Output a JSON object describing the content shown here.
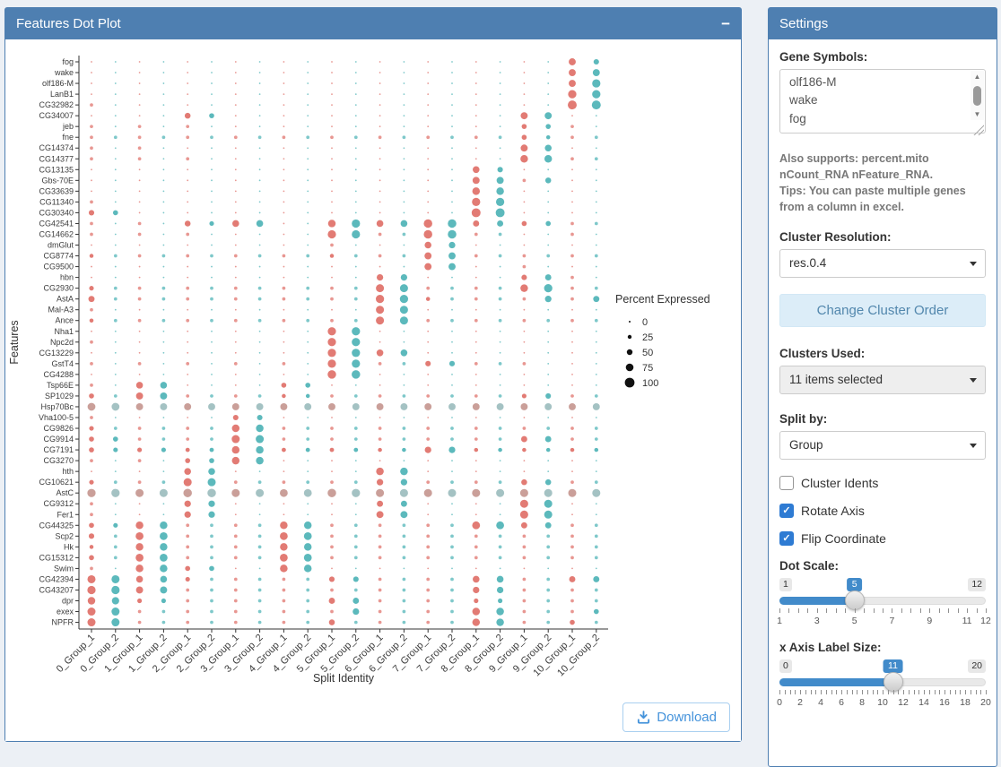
{
  "theme": {
    "header_bg": "#4e7fb1",
    "header_text": "#ffffff",
    "page_bg": "#ecf0f5",
    "slider_accent": "#428bca",
    "checkbox_accent": "#2e7bd3",
    "download_accent": "#4593db"
  },
  "icons": {
    "collapse": "−",
    "check": "✓",
    "scroll_up": "▲",
    "scroll_down": "▼"
  },
  "plot_panel": {
    "title": "Features Dot Plot",
    "download_label": "Download"
  },
  "settings_panel": {
    "title": "Settings",
    "gene_symbols_label": "Gene Symbols:",
    "gene_symbols_value": "olf186-M\nwake\nfog",
    "help_line1": "Also supports: percent.mito nCount_RNA nFeature_RNA.",
    "help_line2": "Tips: You can paste multiple genes from a column in excel.",
    "cluster_resolution_label": "Cluster Resolution:",
    "cluster_resolution_value": "res.0.4",
    "change_cluster_order_label": "Change Cluster Order",
    "clusters_used_label": "Clusters Used:",
    "clusters_used_value": "11 items selected",
    "split_by_label": "Split by:",
    "split_by_value": "Group",
    "checkboxes": [
      {
        "label": "Cluster Idents",
        "checked": false
      },
      {
        "label": "Rotate Axis",
        "checked": true
      },
      {
        "label": "Flip Coordinate",
        "checked": true
      }
    ],
    "sliders": [
      {
        "label": "Dot Scale:",
        "min": 1,
        "max": 12,
        "value": 5,
        "tick_labels": [
          1,
          3,
          5,
          7,
          9,
          11,
          12
        ]
      },
      {
        "label": "x Axis Label Size:",
        "min": 0,
        "max": 20,
        "value": 11,
        "tick_labels": [
          0,
          2,
          4,
          6,
          8,
          10,
          12,
          14,
          16,
          18,
          20
        ]
      }
    ]
  },
  "chart_data": {
    "type": "scatter",
    "subtype": "split-dot-plot",
    "title": "",
    "xlabel": "Split Identity",
    "ylabel": "Features",
    "legend": {
      "title": "Percent Expressed",
      "sizes": [
        0,
        25,
        50,
        75,
        100
      ],
      "position": "right"
    },
    "colors": {
      "group1": "#e0746d",
      "group2": "#53b5b8",
      "group1_muted": "#c79a94",
      "group2_muted": "#9fbfc0"
    },
    "x_categories": [
      "0_Group_1",
      "0_Group_2",
      "1_Group_1",
      "1_Group_2",
      "2_Group_1",
      "2_Group_2",
      "3_Group_1",
      "3_Group_2",
      "4_Group_1",
      "4_Group_2",
      "5_Group_1",
      "5_Group_2",
      "6_Group_1",
      "6_Group_2",
      "7_Group_1",
      "7_Group_2",
      "8_Group_1",
      "8_Group_2",
      "9_Group_1",
      "9_Group_2",
      "10_Group_1",
      "10_Group_2"
    ],
    "y_categories": [
      "fog",
      "wake",
      "olf186-M",
      "LanB1",
      "CG32982",
      "CG34007",
      "jeb",
      "fne",
      "CG14374",
      "CG14377",
      "CG13135",
      "Gbs-70E",
      "CG33639",
      "CG11340",
      "CG30340",
      "CG42541",
      "CG14662",
      "dmGlut",
      "CG8774",
      "CG9500",
      "hbn",
      "CG2930",
      "AstA",
      "Mal-A3",
      "Ance",
      "Nha1",
      "Npc2d",
      "CG13229",
      "GstT4",
      "CG4288",
      "Tsp66E",
      "SP1029",
      "Hsp70Bc",
      "Vha100-5",
      "CG9826",
      "CG9914",
      "CG7191",
      "CG3270",
      "hth",
      "CG10621",
      "AstC",
      "CG9312",
      "Fer1",
      "CG44325",
      "Scp2",
      "Hk",
      "CG15312",
      "Swim",
      "CG42394",
      "CG43207",
      "dpr",
      "exex",
      "NPFR"
    ],
    "muted_rows": [
      "Hsp70Bc",
      "AstC"
    ],
    "percent_expressed": [
      [
        3,
        3,
        3,
        3,
        3,
        3,
        3,
        3,
        3,
        3,
        3,
        3,
        3,
        3,
        3,
        3,
        3,
        3,
        3,
        3,
        50,
        25
      ],
      [
        3,
        3,
        3,
        3,
        3,
        3,
        3,
        3,
        3,
        3,
        3,
        3,
        3,
        3,
        3,
        3,
        3,
        3,
        3,
        3,
        50,
        50
      ],
      [
        3,
        3,
        3,
        3,
        3,
        3,
        3,
        3,
        3,
        3,
        3,
        3,
        3,
        3,
        3,
        3,
        3,
        3,
        3,
        3,
        50,
        75
      ],
      [
        3,
        3,
        3,
        3,
        3,
        3,
        3,
        3,
        3,
        3,
        3,
        3,
        3,
        3,
        3,
        3,
        3,
        3,
        3,
        3,
        75,
        75
      ],
      [
        5,
        3,
        3,
        3,
        3,
        3,
        3,
        3,
        3,
        3,
        3,
        3,
        3,
        3,
        3,
        3,
        3,
        3,
        3,
        3,
        90,
        90
      ],
      [
        3,
        3,
        3,
        3,
        30,
        20,
        3,
        3,
        3,
        3,
        3,
        3,
        3,
        3,
        3,
        3,
        3,
        3,
        50,
        50,
        3,
        3
      ],
      [
        5,
        3,
        5,
        3,
        5,
        3,
        3,
        3,
        3,
        3,
        3,
        3,
        3,
        3,
        3,
        3,
        3,
        3,
        20,
        20,
        5,
        3
      ],
      [
        5,
        5,
        5,
        5,
        5,
        5,
        5,
        5,
        5,
        5,
        5,
        5,
        5,
        5,
        5,
        5,
        5,
        5,
        20,
        10,
        5,
        5
      ],
      [
        5,
        3,
        5,
        3,
        3,
        3,
        3,
        3,
        3,
        3,
        3,
        3,
        3,
        3,
        3,
        3,
        3,
        3,
        50,
        45,
        3,
        3
      ],
      [
        5,
        3,
        5,
        3,
        5,
        3,
        3,
        3,
        3,
        3,
        3,
        3,
        3,
        3,
        3,
        3,
        3,
        3,
        60,
        60,
        5,
        5
      ],
      [
        3,
        3,
        3,
        3,
        3,
        3,
        3,
        3,
        3,
        3,
        3,
        3,
        3,
        3,
        3,
        3,
        45,
        25,
        3,
        3,
        3,
        3
      ],
      [
        3,
        3,
        3,
        3,
        3,
        3,
        3,
        3,
        3,
        3,
        3,
        3,
        3,
        3,
        3,
        3,
        50,
        50,
        5,
        30,
        3,
        3
      ],
      [
        3,
        3,
        3,
        3,
        3,
        3,
        3,
        3,
        3,
        3,
        3,
        3,
        3,
        3,
        3,
        3,
        60,
        60,
        3,
        3,
        3,
        3
      ],
      [
        5,
        3,
        3,
        3,
        3,
        3,
        3,
        3,
        3,
        3,
        3,
        3,
        3,
        3,
        3,
        3,
        75,
        75,
        3,
        3,
        3,
        3
      ],
      [
        25,
        20,
        3,
        3,
        3,
        3,
        3,
        3,
        3,
        3,
        3,
        3,
        3,
        3,
        3,
        3,
        90,
        90,
        3,
        3,
        3,
        3
      ],
      [
        5,
        3,
        5,
        3,
        30,
        15,
        45,
        45,
        3,
        3,
        60,
        75,
        45,
        45,
        80,
        80,
        35,
        35,
        20,
        20,
        5,
        5
      ],
      [
        5,
        3,
        5,
        3,
        5,
        3,
        3,
        3,
        3,
        3,
        75,
        75,
        5,
        5,
        80,
        80,
        5,
        5,
        3,
        3,
        5,
        3
      ],
      [
        3,
        3,
        3,
        3,
        3,
        3,
        3,
        3,
        3,
        3,
        5,
        3,
        3,
        3,
        45,
        40,
        3,
        3,
        3,
        3,
        3,
        3
      ],
      [
        10,
        5,
        5,
        5,
        5,
        5,
        5,
        5,
        5,
        5,
        10,
        5,
        5,
        5,
        50,
        50,
        5,
        5,
        5,
        5,
        5,
        5
      ],
      [
        3,
        3,
        3,
        3,
        3,
        3,
        3,
        3,
        3,
        3,
        3,
        3,
        3,
        3,
        50,
        50,
        3,
        3,
        5,
        3,
        3,
        3
      ],
      [
        3,
        3,
        3,
        3,
        3,
        3,
        3,
        3,
        3,
        3,
        3,
        3,
        40,
        40,
        3,
        3,
        3,
        3,
        25,
        35,
        5,
        3
      ],
      [
        15,
        5,
        5,
        5,
        5,
        5,
        5,
        5,
        5,
        5,
        5,
        5,
        70,
        70,
        5,
        5,
        5,
        5,
        60,
        75,
        5,
        5
      ],
      [
        35,
        5,
        5,
        5,
        5,
        5,
        5,
        5,
        5,
        5,
        5,
        5,
        75,
        75,
        10,
        5,
        5,
        5,
        5,
        40,
        5,
        35
      ],
      [
        5,
        3,
        3,
        3,
        3,
        3,
        3,
        3,
        3,
        3,
        3,
        3,
        70,
        70,
        3,
        3,
        3,
        3,
        3,
        3,
        3,
        3
      ],
      [
        10,
        5,
        5,
        5,
        5,
        5,
        5,
        5,
        5,
        5,
        5,
        5,
        70,
        70,
        5,
        5,
        5,
        5,
        5,
        5,
        5,
        5
      ],
      [
        3,
        3,
        3,
        3,
        3,
        3,
        3,
        3,
        3,
        3,
        75,
        75,
        3,
        3,
        3,
        3,
        3,
        3,
        3,
        3,
        3,
        3
      ],
      [
        5,
        3,
        3,
        3,
        3,
        3,
        3,
        3,
        3,
        3,
        75,
        75,
        3,
        3,
        3,
        3,
        3,
        3,
        3,
        3,
        3,
        3
      ],
      [
        3,
        3,
        3,
        3,
        3,
        3,
        3,
        3,
        3,
        3,
        75,
        75,
        45,
        45,
        3,
        3,
        3,
        3,
        3,
        3,
        3,
        3
      ],
      [
        5,
        3,
        5,
        3,
        5,
        3,
        5,
        3,
        5,
        3,
        75,
        75,
        5,
        5,
        25,
        25,
        5,
        5,
        5,
        3,
        3,
        3
      ],
      [
        3,
        3,
        3,
        3,
        3,
        3,
        3,
        3,
        3,
        3,
        80,
        80,
        3,
        3,
        3,
        3,
        3,
        3,
        3,
        3,
        3,
        3
      ],
      [
        5,
        3,
        45,
        45,
        3,
        3,
        3,
        3,
        20,
        20,
        3,
        3,
        3,
        3,
        3,
        3,
        3,
        3,
        3,
        3,
        3,
        3
      ],
      [
        20,
        5,
        50,
        50,
        5,
        5,
        5,
        5,
        10,
        10,
        5,
        5,
        5,
        5,
        5,
        5,
        5,
        5,
        15,
        25,
        5,
        5
      ],
      [
        65,
        65,
        50,
        50,
        50,
        50,
        50,
        50,
        50,
        50,
        50,
        50,
        50,
        50,
        50,
        50,
        50,
        50,
        50,
        50,
        50,
        50
      ],
      [
        5,
        3,
        3,
        3,
        3,
        3,
        25,
        25,
        3,
        3,
        3,
        3,
        3,
        3,
        3,
        3,
        3,
        3,
        3,
        3,
        3,
        3
      ],
      [
        15,
        5,
        5,
        5,
        5,
        5,
        60,
        60,
        5,
        5,
        5,
        5,
        5,
        5,
        5,
        5,
        5,
        5,
        5,
        5,
        5,
        5
      ],
      [
        20,
        20,
        5,
        5,
        5,
        5,
        70,
        70,
        5,
        5,
        5,
        5,
        5,
        5,
        5,
        5,
        5,
        5,
        35,
        35,
        5,
        5
      ],
      [
        20,
        15,
        15,
        15,
        12,
        12,
        60,
        60,
        12,
        12,
        12,
        12,
        10,
        10,
        40,
        40,
        10,
        10,
        10,
        10,
        10,
        10
      ],
      [
        5,
        3,
        5,
        3,
        20,
        20,
        60,
        60,
        3,
        3,
        3,
        3,
        3,
        3,
        3,
        3,
        3,
        3,
        3,
        3,
        3,
        3
      ],
      [
        3,
        3,
        3,
        3,
        45,
        45,
        3,
        3,
        3,
        3,
        3,
        3,
        60,
        60,
        3,
        3,
        3,
        3,
        3,
        3,
        3,
        3
      ],
      [
        15,
        5,
        5,
        5,
        70,
        70,
        5,
        5,
        5,
        5,
        5,
        5,
        40,
        40,
        5,
        5,
        5,
        5,
        30,
        30,
        5,
        5
      ],
      [
        75,
        75,
        70,
        70,
        80,
        80,
        70,
        70,
        65,
        65,
        80,
        75,
        70,
        70,
        70,
        70,
        70,
        70,
        70,
        70,
        70,
        70
      ],
      [
        5,
        3,
        3,
        3,
        40,
        40,
        3,
        3,
        3,
        3,
        3,
        3,
        35,
        35,
        3,
        3,
        3,
        3,
        70,
        70,
        3,
        3
      ],
      [
        5,
        3,
        3,
        3,
        40,
        40,
        3,
        3,
        3,
        3,
        3,
        3,
        50,
        50,
        3,
        3,
        3,
        3,
        70,
        70,
        3,
        3
      ],
      [
        20,
        15,
        60,
        60,
        5,
        5,
        5,
        5,
        60,
        60,
        5,
        5,
        5,
        5,
        5,
        5,
        65,
        65,
        35,
        35,
        5,
        5
      ],
      [
        25,
        5,
        65,
        65,
        5,
        5,
        5,
        5,
        65,
        65,
        5,
        5,
        5,
        5,
        5,
        5,
        5,
        5,
        5,
        5,
        5,
        5
      ],
      [
        10,
        5,
        60,
        60,
        5,
        5,
        5,
        5,
        60,
        60,
        5,
        5,
        5,
        5,
        5,
        5,
        5,
        5,
        5,
        5,
        5,
        5
      ],
      [
        20,
        5,
        65,
        65,
        5,
        5,
        5,
        5,
        65,
        65,
        5,
        5,
        5,
        5,
        5,
        5,
        5,
        5,
        5,
        5,
        5,
        5
      ],
      [
        5,
        3,
        60,
        60,
        20,
        20,
        3,
        3,
        60,
        60,
        3,
        3,
        3,
        3,
        3,
        3,
        3,
        3,
        3,
        3,
        3,
        3
      ],
      [
        70,
        70,
        45,
        45,
        15,
        5,
        5,
        5,
        5,
        5,
        25,
        25,
        5,
        5,
        5,
        5,
        45,
        45,
        5,
        5,
        35,
        35
      ],
      [
        75,
        75,
        50,
        50,
        5,
        5,
        5,
        5,
        5,
        5,
        5,
        5,
        5,
        5,
        5,
        5,
        40,
        40,
        5,
        5,
        5,
        5
      ],
      [
        60,
        55,
        15,
        15,
        5,
        5,
        5,
        5,
        5,
        5,
        35,
        35,
        5,
        5,
        5,
        5,
        15,
        15,
        5,
        5,
        5,
        5
      ],
      [
        70,
        70,
        5,
        5,
        5,
        5,
        5,
        5,
        5,
        5,
        5,
        40,
        5,
        5,
        5,
        5,
        60,
        60,
        5,
        5,
        5,
        20
      ],
      [
        70,
        70,
        5,
        5,
        5,
        5,
        5,
        5,
        5,
        5,
        30,
        5,
        5,
        5,
        5,
        5,
        60,
        60,
        5,
        5,
        20,
        5
      ]
    ]
  }
}
